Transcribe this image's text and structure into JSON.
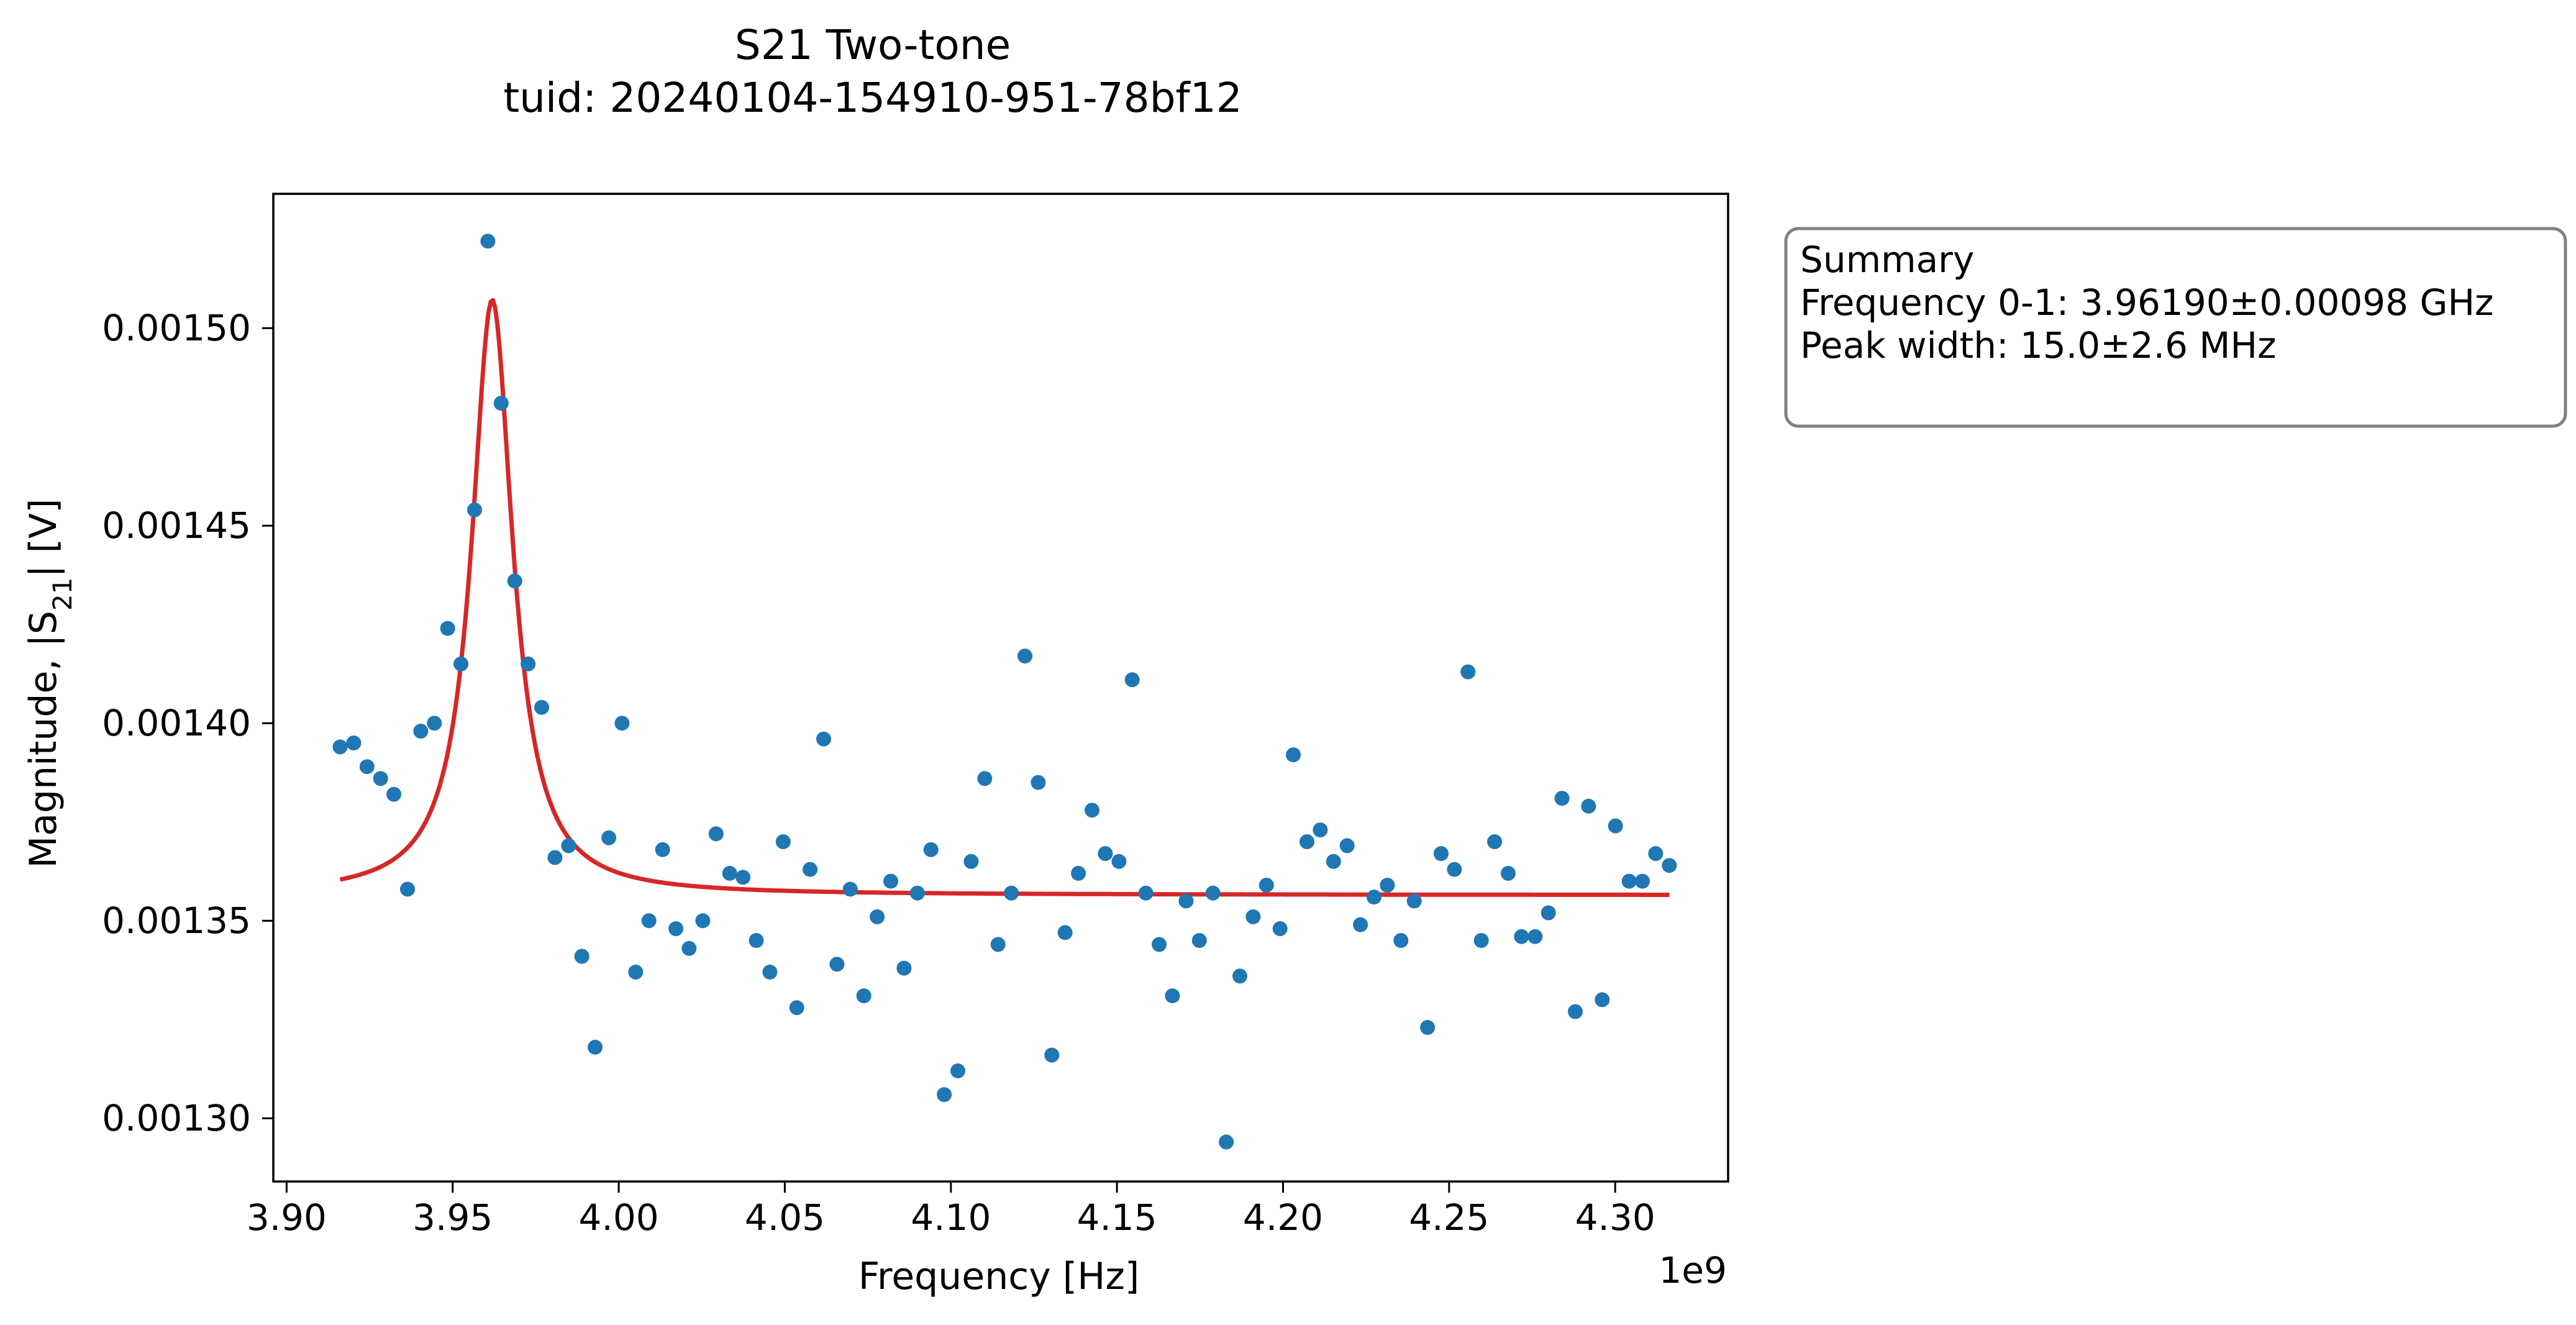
{
  "chart_data": {
    "type": "scatter",
    "title": "S21 Two-tone",
    "subtitle": "tuid: 20240104-154910-951-78bf12",
    "xlabel": "Frequency [Hz]",
    "ylabel": "Magnitude, |S21| [V]",
    "x_offset_label": "1e9",
    "xlim": [
      3896000000.0,
      4334000000.0
    ],
    "ylim": [
      0.001284,
      0.001534
    ],
    "xticks": [
      {
        "value": 3900000000.0,
        "label": "3.90"
      },
      {
        "value": 3950000000.0,
        "label": "3.95"
      },
      {
        "value": 4000000000.0,
        "label": "4.00"
      },
      {
        "value": 4050000000.0,
        "label": "4.05"
      },
      {
        "value": 4100000000.0,
        "label": "4.10"
      },
      {
        "value": 4150000000.0,
        "label": "4.15"
      },
      {
        "value": 4200000000.0,
        "label": "4.20"
      },
      {
        "value": 4250000000.0,
        "label": "4.25"
      },
      {
        "value": 4300000000.0,
        "label": "4.30"
      }
    ],
    "yticks": [
      {
        "value": 0.0013,
        "label": "0.00130"
      },
      {
        "value": 0.00135,
        "label": "0.00135"
      },
      {
        "value": 0.0014,
        "label": "0.00140"
      },
      {
        "value": 0.00145,
        "label": "0.00145"
      },
      {
        "value": 0.0015,
        "label": "0.00150"
      }
    ],
    "grid": false,
    "series": [
      {
        "kind": "scatter",
        "color": "#1f77b4",
        "points": [
          [
            3916100000.0,
            0.001394
          ],
          [
            3920200000.0,
            0.001395
          ],
          [
            3924200000.0,
            0.001389
          ],
          [
            3928300000.0,
            0.001386
          ],
          [
            3932300000.0,
            0.001382
          ],
          [
            3936400000.0,
            0.001358
          ],
          [
            3940400000.0,
            0.001398
          ],
          [
            3944500000.0,
            0.0014
          ],
          [
            3948500000.0,
            0.001424
          ],
          [
            3952500000.0,
            0.001415
          ],
          [
            3956600000.0,
            0.001454
          ],
          [
            3960600000.0,
            0.001522
          ],
          [
            3964600000.0,
            0.001481
          ],
          [
            3968700000.0,
            0.001436
          ],
          [
            3972700000.0,
            0.001415
          ],
          [
            3976800000.0,
            0.001404
          ],
          [
            3980800000.0,
            0.001366
          ],
          [
            3984900000.0,
            0.001369
          ],
          [
            3988900000.0,
            0.001341
          ],
          [
            3992900000.0,
            0.001318
          ],
          [
            3997000000.0,
            0.001371
          ],
          [
            4001000000.0,
            0.0014
          ],
          [
            4005100000.0,
            0.001337
          ],
          [
            4009100000.0,
            0.00135
          ],
          [
            4013200000.0,
            0.001368
          ],
          [
            4017200000.0,
            0.001348
          ],
          [
            4021200000.0,
            0.001343
          ],
          [
            4025300000.0,
            0.00135
          ],
          [
            4029300000.0,
            0.001372
          ],
          [
            4033400000.0,
            0.001362
          ],
          [
            4037400000.0,
            0.001361
          ],
          [
            4041400000.0,
            0.001345
          ],
          [
            4045500000.0,
            0.001337
          ],
          [
            4049500000.0,
            0.00137
          ],
          [
            4053600000.0,
            0.001328
          ],
          [
            4057600000.0,
            0.001363
          ],
          [
            4061700000.0,
            0.001396
          ],
          [
            4065700000.0,
            0.001339
          ],
          [
            4069700000.0,
            0.001358
          ],
          [
            4073800000.0,
            0.001331
          ],
          [
            4077800000.0,
            0.001351
          ],
          [
            4081900000.0,
            0.00136
          ],
          [
            4085900000.0,
            0.001338
          ],
          [
            4089900000.0,
            0.001357
          ],
          [
            4094000000.0,
            0.001368
          ],
          [
            4098000000.0,
            0.001306
          ],
          [
            4102100000.0,
            0.001312
          ],
          [
            4106100000.0,
            0.001365
          ],
          [
            4110200000.0,
            0.001386
          ],
          [
            4114200000.0,
            0.001344
          ],
          [
            4118200000.0,
            0.001357
          ],
          [
            4122300000.0,
            0.001417
          ],
          [
            4126300000.0,
            0.001385
          ],
          [
            4130400000.0,
            0.001316
          ],
          [
            4134400000.0,
            0.001347
          ],
          [
            4138400000.0,
            0.001362
          ],
          [
            4142500000.0,
            0.001378
          ],
          [
            4146500000.0,
            0.001367
          ],
          [
            4150600000.0,
            0.001365
          ],
          [
            4154600000.0,
            0.001411
          ],
          [
            4158700000.0,
            0.001357
          ],
          [
            4162700000.0,
            0.001344
          ],
          [
            4166700000.0,
            0.001331
          ],
          [
            4170800000.0,
            0.001355
          ],
          [
            4174800000.0,
            0.001345
          ],
          [
            4178900000.0,
            0.001357
          ],
          [
            4182900000.0,
            0.001294
          ],
          [
            4187000000.0,
            0.001336
          ],
          [
            4191000000.0,
            0.001351
          ],
          [
            4195000000.0,
            0.001359
          ],
          [
            4199100000.0,
            0.001348
          ],
          [
            4203100000.0,
            0.001392
          ],
          [
            4207200000.0,
            0.00137
          ],
          [
            4211200000.0,
            0.001373
          ],
          [
            4215200000.0,
            0.001365
          ],
          [
            4219300000.0,
            0.001369
          ],
          [
            4223300000.0,
            0.001349
          ],
          [
            4227400000.0,
            0.001356
          ],
          [
            4231400000.0,
            0.001359
          ],
          [
            4235500000.0,
            0.001345
          ],
          [
            4239500000.0,
            0.001355
          ],
          [
            4243500000.0,
            0.001323
          ],
          [
            4247600000.0,
            0.001367
          ],
          [
            4251600000.0,
            0.001363
          ],
          [
            4255700000.0,
            0.001413
          ],
          [
            4259700000.0,
            0.001345
          ],
          [
            4263700000.0,
            0.00137
          ],
          [
            4267800000.0,
            0.001362
          ],
          [
            4271800000.0,
            0.001346
          ],
          [
            4275900000.0,
            0.001346
          ],
          [
            4279900000.0,
            0.001352
          ],
          [
            4284000000.0,
            0.001381
          ],
          [
            4288000000.0,
            0.001327
          ],
          [
            4292000000.0,
            0.001379
          ],
          [
            4296100000.0,
            0.00133
          ],
          [
            4300100000.0,
            0.001374
          ],
          [
            4304200000.0,
            0.00136
          ],
          [
            4308200000.0,
            0.00136
          ],
          [
            4312200000.0,
            0.001367
          ],
          [
            4316300000.0,
            0.001364
          ]
        ]
      },
      {
        "kind": "line",
        "color": "#d62728",
        "model": {
          "center": 3961900000.0,
          "fwhm": 15000000.0,
          "amplitude": 0.0001507,
          "offset": 0.0013565
        },
        "x_range": [
          3916100000.0,
          4316300000.0
        ]
      }
    ],
    "summary": {
      "heading": "Summary",
      "lines": [
        "Frequency 0-1: 3.96190±0.00098 GHz",
        "Peak width: 15.0±2.6 MHz"
      ]
    }
  }
}
